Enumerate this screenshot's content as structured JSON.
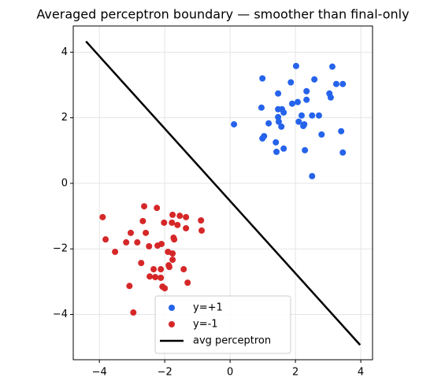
{
  "chart_data": {
    "type": "scatter",
    "title": "Averaged perceptron boundary — smoother than final-only",
    "xlim": [
      -4.8,
      4.36
    ],
    "ylim": [
      -5.38,
      4.8
    ],
    "xticks": [
      {
        "value": -4,
        "label": "−4"
      },
      {
        "value": -2,
        "label": "−2"
      },
      0,
      2,
      4
    ],
    "yticks": [
      {
        "value": -4,
        "label": "−4"
      },
      {
        "value": -2,
        "label": "−2"
      },
      0,
      2,
      4
    ],
    "grid": true,
    "legend": "lower center",
    "series": [
      {
        "name": "y=+1",
        "color": "#2563eb",
        "x": [
          0.12,
          0.99,
          0.96,
          2.02,
          3.13,
          1.47,
          1.86,
          2.58,
          2.34,
          2.07,
          1.9,
          1.47,
          1.59,
          1.64,
          2.34,
          3.04,
          3.08,
          3.25,
          3.45,
          1.18,
          1.47,
          1.49,
          1.57,
          2.1,
          2.19,
          2.24,
          2.27,
          2.51,
          2.72,
          2.8,
          3.4,
          1.04,
          0.99,
          1.4,
          1.64,
          1.42,
          2.29,
          3.45,
          2.51
        ],
        "values": [
          1.8,
          3.2,
          2.31,
          3.58,
          3.56,
          2.74,
          3.08,
          3.17,
          2.81,
          2.48,
          2.43,
          2.26,
          2.26,
          2.16,
          2.55,
          2.74,
          2.62,
          3.03,
          3.03,
          1.83,
          2.02,
          1.88,
          1.73,
          1.88,
          2.07,
          1.75,
          1.8,
          2.07,
          2.07,
          1.49,
          1.59,
          1.44,
          1.37,
          1.25,
          1.06,
          0.96,
          1.01,
          0.94,
          0.22
        ]
      },
      {
        "name": "y=-1",
        "color": "#d62728",
        "x": [
          -3.9,
          -2.63,
          -2.24,
          -3.81,
          -3.52,
          -3.04,
          -3.18,
          -2.84,
          -2.67,
          -2.58,
          -2.48,
          -2.02,
          -1.76,
          -1.54,
          -1.78,
          -1.61,
          -1.35,
          -1.35,
          -0.89,
          -0.87,
          -2.22,
          -2.1,
          -1.73,
          -1.71,
          -1.9,
          -1.76,
          -1.76,
          -2.72,
          -2.34,
          -2.12,
          -1.88,
          -1.86,
          -1.42,
          -2.46,
          -2.29,
          -2.12,
          -1.3,
          -3.08,
          -2.0,
          -2.07,
          -2.96
        ],
        "values": [
          -1.03,
          -0.7,
          -0.75,
          -1.71,
          -2.09,
          -1.51,
          -1.8,
          -1.8,
          -1.15,
          -1.51,
          -1.92,
          -1.2,
          -0.96,
          -0.99,
          -1.2,
          -1.27,
          -1.03,
          -1.37,
          -1.13,
          -1.44,
          -1.9,
          -1.85,
          -1.66,
          -1.71,
          -2.09,
          -2.14,
          -2.33,
          -2.43,
          -2.62,
          -2.62,
          -2.5,
          -2.55,
          -2.62,
          -2.84,
          -2.86,
          -2.88,
          -3.03,
          -3.13,
          -3.2,
          -3.15,
          -3.94
        ]
      }
    ],
    "line": {
      "name": "avg perceptron",
      "color": "#000000",
      "x": [
        -4.41,
        3.98
      ],
      "values": [
        4.33,
        -4.93
      ]
    }
  }
}
